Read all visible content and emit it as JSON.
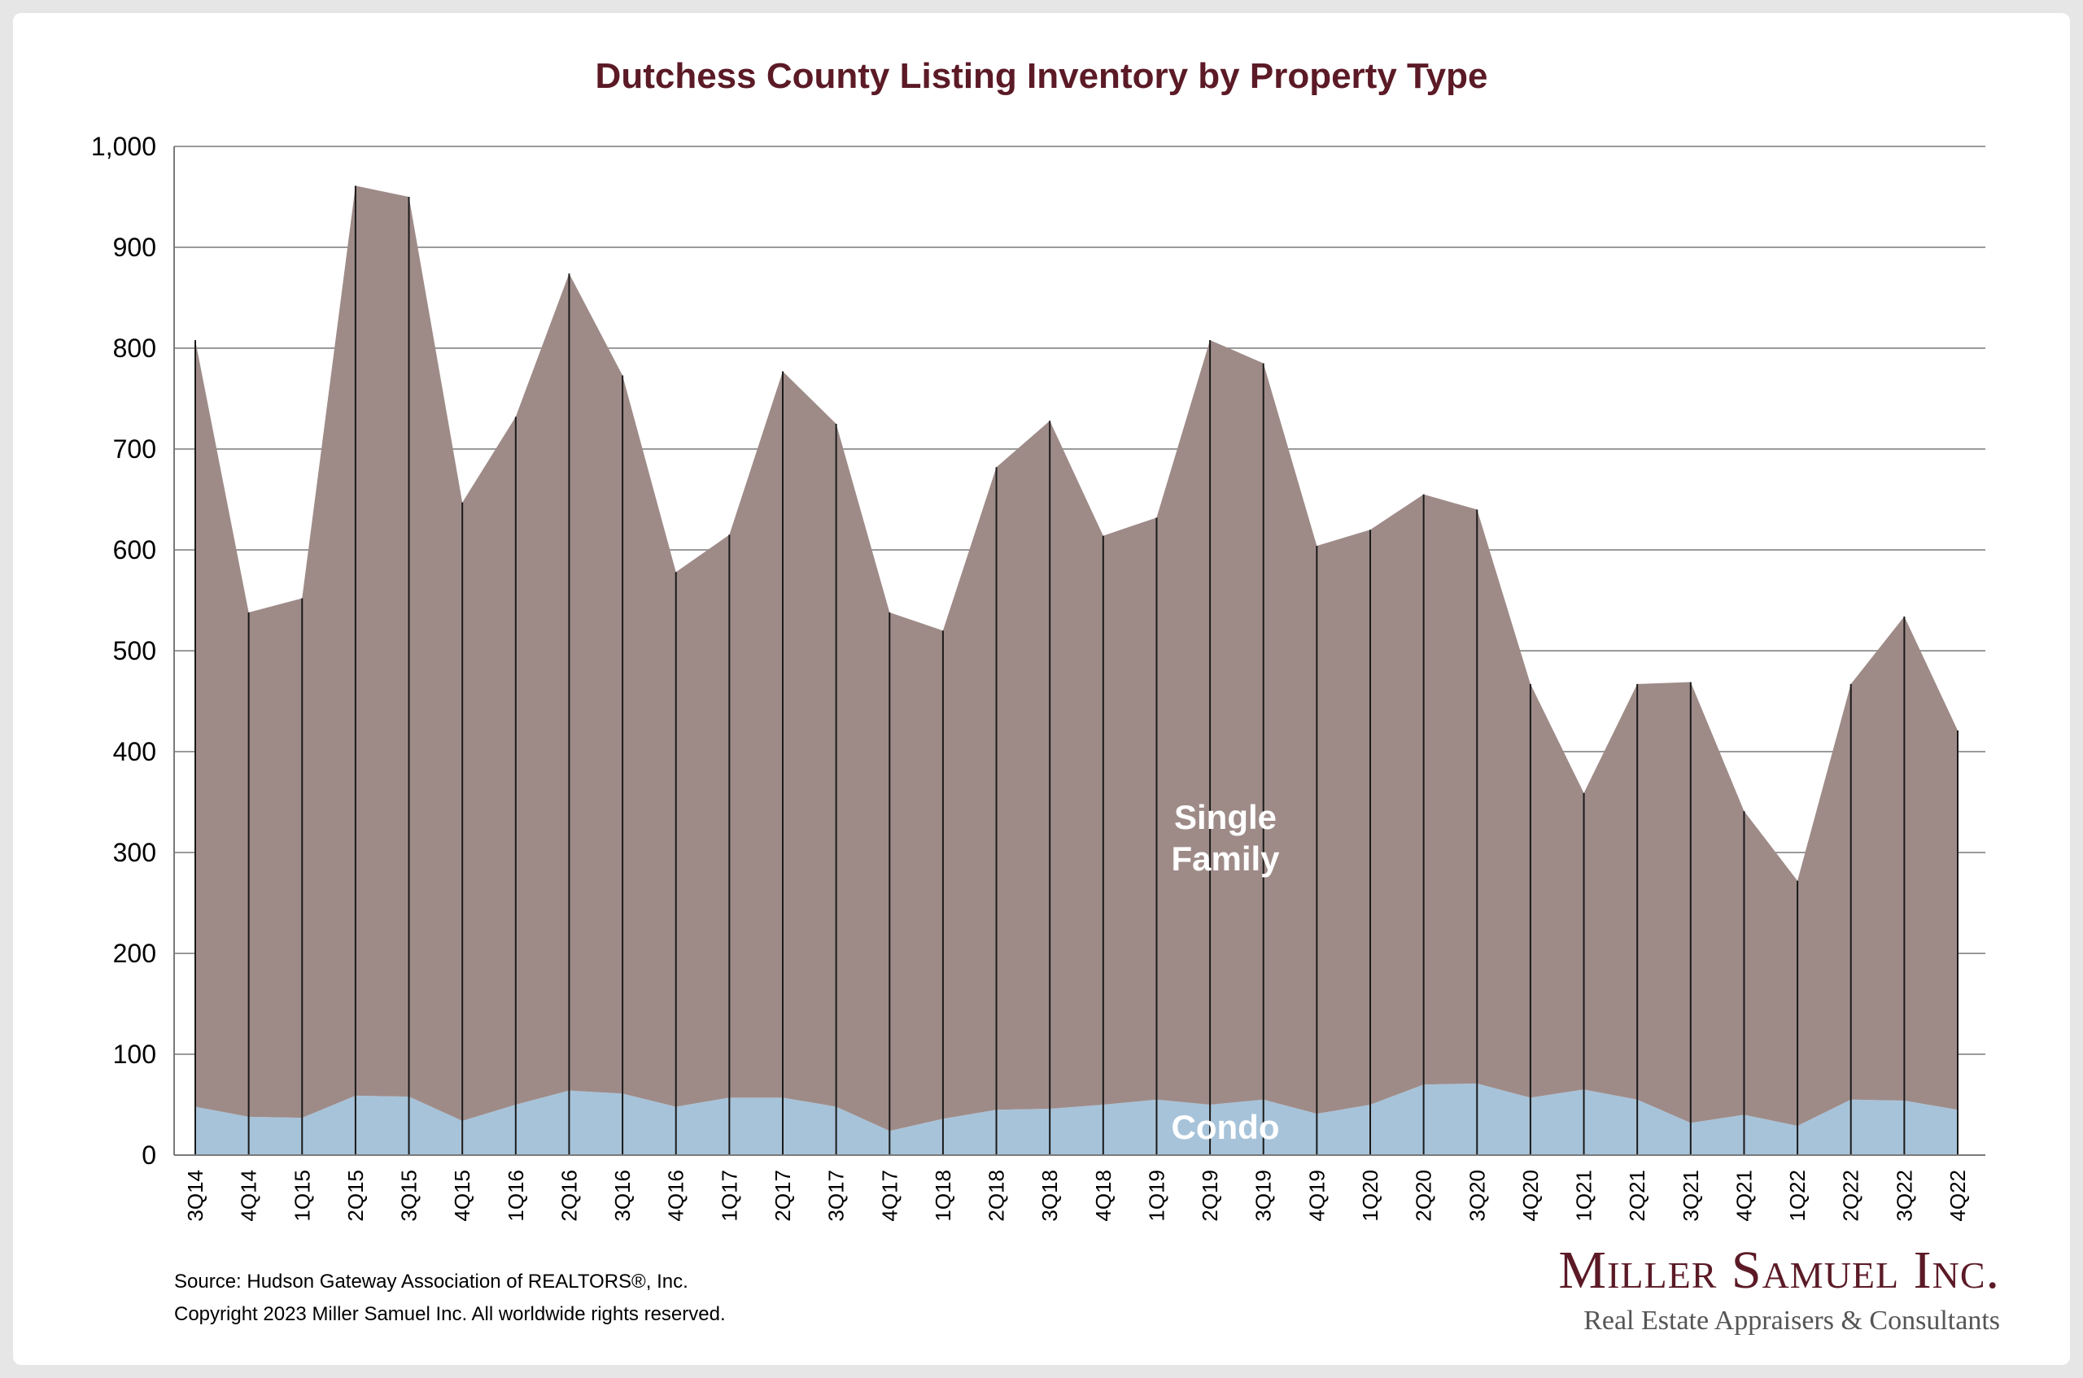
{
  "chart_data": {
    "type": "area",
    "title": "Dutchess County Listing Inventory by Property Type",
    "xlabel": "",
    "ylabel": "",
    "ylim": [
      0,
      1000
    ],
    "yticks": [
      0,
      100,
      200,
      300,
      400,
      500,
      600,
      700,
      800,
      900,
      1000
    ],
    "ytick_labels": [
      "0",
      "100",
      "200",
      "300",
      "400",
      "500",
      "600",
      "700",
      "800",
      "900",
      "1,000"
    ],
    "stacked": true,
    "grid": true,
    "categories": [
      "3Q14",
      "4Q14",
      "1Q15",
      "2Q15",
      "3Q15",
      "4Q15",
      "1Q16",
      "2Q16",
      "3Q16",
      "4Q16",
      "1Q17",
      "2Q17",
      "3Q17",
      "4Q17",
      "1Q18",
      "2Q18",
      "3Q18",
      "4Q18",
      "1Q19",
      "2Q19",
      "3Q19",
      "4Q19",
      "1Q20",
      "2Q20",
      "3Q20",
      "4Q20",
      "1Q21",
      "2Q21",
      "3Q21",
      "4Q21",
      "1Q22",
      "2Q22",
      "3Q22",
      "4Q22"
    ],
    "series": [
      {
        "name": "Condo",
        "color": "#a7c3d9",
        "values": [
          48,
          38,
          37,
          59,
          58,
          34,
          50,
          64,
          61,
          48,
          57,
          57,
          48,
          24,
          36,
          45,
          46,
          50,
          55,
          50,
          55,
          41,
          50,
          70,
          71,
          57,
          65,
          55,
          32,
          40,
          29,
          55,
          54,
          45
        ]
      },
      {
        "name": "Single Family",
        "color": "#9e8b88",
        "values": [
          760,
          500,
          515,
          902,
          892,
          613,
          682,
          810,
          712,
          530,
          558,
          720,
          677,
          514,
          484,
          637,
          682,
          564,
          577,
          758,
          730,
          563,
          570,
          585,
          569,
          410,
          294,
          412,
          437,
          301,
          243,
          412,
          480,
          376
        ]
      }
    ],
    "labels": {
      "single_family": [
        "Single",
        "Family"
      ],
      "condo": "Condo"
    }
  },
  "footer": {
    "source": "Source: Hudson Gateway Association of REALTORS®, Inc.",
    "copyright": "Copyright 2023 Miller Samuel Inc.  All worldwide rights reserved."
  },
  "logo": {
    "name": "Miller Samuel Inc.",
    "tagline": "Real Estate Appraisers & Consultants"
  }
}
